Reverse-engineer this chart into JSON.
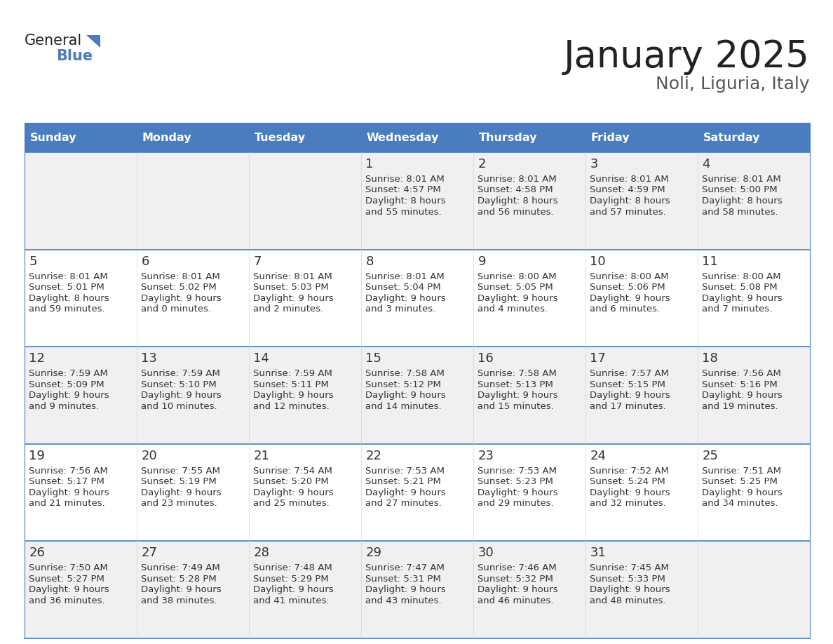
{
  "title": "January 2025",
  "subtitle": "Noli, Liguria, Italy",
  "days_of_week": [
    "Sunday",
    "Monday",
    "Tuesday",
    "Wednesday",
    "Thursday",
    "Friday",
    "Saturday"
  ],
  "header_bg": "#4a7dbf",
  "header_text": "#FFFFFF",
  "row_bg_odd": "#F0F0F0",
  "row_bg_even": "#FFFFFF",
  "grid_line_color": "#4a7dbf",
  "cell_text_color": "#333333",
  "title_color": "#222222",
  "subtitle_color": "#555555",
  "logo_general_color": "#222222",
  "logo_blue_color": "#4a7dbf",
  "logo_triangle_color": "#4a7dbf",
  "calendar_data": [
    [
      {
        "day": "",
        "sunrise": "",
        "sunset": "",
        "daylight": ""
      },
      {
        "day": "",
        "sunrise": "",
        "sunset": "",
        "daylight": ""
      },
      {
        "day": "",
        "sunrise": "",
        "sunset": "",
        "daylight": ""
      },
      {
        "day": "1",
        "sunrise": "8:01 AM",
        "sunset": "4:57 PM",
        "daylight_line1": "Daylight: 8 hours",
        "daylight_line2": "and 55 minutes."
      },
      {
        "day": "2",
        "sunrise": "8:01 AM",
        "sunset": "4:58 PM",
        "daylight_line1": "Daylight: 8 hours",
        "daylight_line2": "and 56 minutes."
      },
      {
        "day": "3",
        "sunrise": "8:01 AM",
        "sunset": "4:59 PM",
        "daylight_line1": "Daylight: 8 hours",
        "daylight_line2": "and 57 minutes."
      },
      {
        "day": "4",
        "sunrise": "8:01 AM",
        "sunset": "5:00 PM",
        "daylight_line1": "Daylight: 8 hours",
        "daylight_line2": "and 58 minutes."
      }
    ],
    [
      {
        "day": "5",
        "sunrise": "8:01 AM",
        "sunset": "5:01 PM",
        "daylight_line1": "Daylight: 8 hours",
        "daylight_line2": "and 59 minutes."
      },
      {
        "day": "6",
        "sunrise": "8:01 AM",
        "sunset": "5:02 PM",
        "daylight_line1": "Daylight: 9 hours",
        "daylight_line2": "and 0 minutes."
      },
      {
        "day": "7",
        "sunrise": "8:01 AM",
        "sunset": "5:03 PM",
        "daylight_line1": "Daylight: 9 hours",
        "daylight_line2": "and 2 minutes."
      },
      {
        "day": "8",
        "sunrise": "8:01 AM",
        "sunset": "5:04 PM",
        "daylight_line1": "Daylight: 9 hours",
        "daylight_line2": "and 3 minutes."
      },
      {
        "day": "9",
        "sunrise": "8:00 AM",
        "sunset": "5:05 PM",
        "daylight_line1": "Daylight: 9 hours",
        "daylight_line2": "and 4 minutes."
      },
      {
        "day": "10",
        "sunrise": "8:00 AM",
        "sunset": "5:06 PM",
        "daylight_line1": "Daylight: 9 hours",
        "daylight_line2": "and 6 minutes."
      },
      {
        "day": "11",
        "sunrise": "8:00 AM",
        "sunset": "5:08 PM",
        "daylight_line1": "Daylight: 9 hours",
        "daylight_line2": "and 7 minutes."
      }
    ],
    [
      {
        "day": "12",
        "sunrise": "7:59 AM",
        "sunset": "5:09 PM",
        "daylight_line1": "Daylight: 9 hours",
        "daylight_line2": "and 9 minutes."
      },
      {
        "day": "13",
        "sunrise": "7:59 AM",
        "sunset": "5:10 PM",
        "daylight_line1": "Daylight: 9 hours",
        "daylight_line2": "and 10 minutes."
      },
      {
        "day": "14",
        "sunrise": "7:59 AM",
        "sunset": "5:11 PM",
        "daylight_line1": "Daylight: 9 hours",
        "daylight_line2": "and 12 minutes."
      },
      {
        "day": "15",
        "sunrise": "7:58 AM",
        "sunset": "5:12 PM",
        "daylight_line1": "Daylight: 9 hours",
        "daylight_line2": "and 14 minutes."
      },
      {
        "day": "16",
        "sunrise": "7:58 AM",
        "sunset": "5:13 PM",
        "daylight_line1": "Daylight: 9 hours",
        "daylight_line2": "and 15 minutes."
      },
      {
        "day": "17",
        "sunrise": "7:57 AM",
        "sunset": "5:15 PM",
        "daylight_line1": "Daylight: 9 hours",
        "daylight_line2": "and 17 minutes."
      },
      {
        "day": "18",
        "sunrise": "7:56 AM",
        "sunset": "5:16 PM",
        "daylight_line1": "Daylight: 9 hours",
        "daylight_line2": "and 19 minutes."
      }
    ],
    [
      {
        "day": "19",
        "sunrise": "7:56 AM",
        "sunset": "5:17 PM",
        "daylight_line1": "Daylight: 9 hours",
        "daylight_line2": "and 21 minutes."
      },
      {
        "day": "20",
        "sunrise": "7:55 AM",
        "sunset": "5:19 PM",
        "daylight_line1": "Daylight: 9 hours",
        "daylight_line2": "and 23 minutes."
      },
      {
        "day": "21",
        "sunrise": "7:54 AM",
        "sunset": "5:20 PM",
        "daylight_line1": "Daylight: 9 hours",
        "daylight_line2": "and 25 minutes."
      },
      {
        "day": "22",
        "sunrise": "7:53 AM",
        "sunset": "5:21 PM",
        "daylight_line1": "Daylight: 9 hours",
        "daylight_line2": "and 27 minutes."
      },
      {
        "day": "23",
        "sunrise": "7:53 AM",
        "sunset": "5:23 PM",
        "daylight_line1": "Daylight: 9 hours",
        "daylight_line2": "and 29 minutes."
      },
      {
        "day": "24",
        "sunrise": "7:52 AM",
        "sunset": "5:24 PM",
        "daylight_line1": "Daylight: 9 hours",
        "daylight_line2": "and 32 minutes."
      },
      {
        "day": "25",
        "sunrise": "7:51 AM",
        "sunset": "5:25 PM",
        "daylight_line1": "Daylight: 9 hours",
        "daylight_line2": "and 34 minutes."
      }
    ],
    [
      {
        "day": "26",
        "sunrise": "7:50 AM",
        "sunset": "5:27 PM",
        "daylight_line1": "Daylight: 9 hours",
        "daylight_line2": "and 36 minutes."
      },
      {
        "day": "27",
        "sunrise": "7:49 AM",
        "sunset": "5:28 PM",
        "daylight_line1": "Daylight: 9 hours",
        "daylight_line2": "and 38 minutes."
      },
      {
        "day": "28",
        "sunrise": "7:48 AM",
        "sunset": "5:29 PM",
        "daylight_line1": "Daylight: 9 hours",
        "daylight_line2": "and 41 minutes."
      },
      {
        "day": "29",
        "sunrise": "7:47 AM",
        "sunset": "5:31 PM",
        "daylight_line1": "Daylight: 9 hours",
        "daylight_line2": "and 43 minutes."
      },
      {
        "day": "30",
        "sunrise": "7:46 AM",
        "sunset": "5:32 PM",
        "daylight_line1": "Daylight: 9 hours",
        "daylight_line2": "and 46 minutes."
      },
      {
        "day": "31",
        "sunrise": "7:45 AM",
        "sunset": "5:33 PM",
        "daylight_line1": "Daylight: 9 hours",
        "daylight_line2": "and 48 minutes."
      },
      {
        "day": "",
        "sunrise": "",
        "sunset": "",
        "daylight_line1": "",
        "daylight_line2": ""
      }
    ]
  ]
}
